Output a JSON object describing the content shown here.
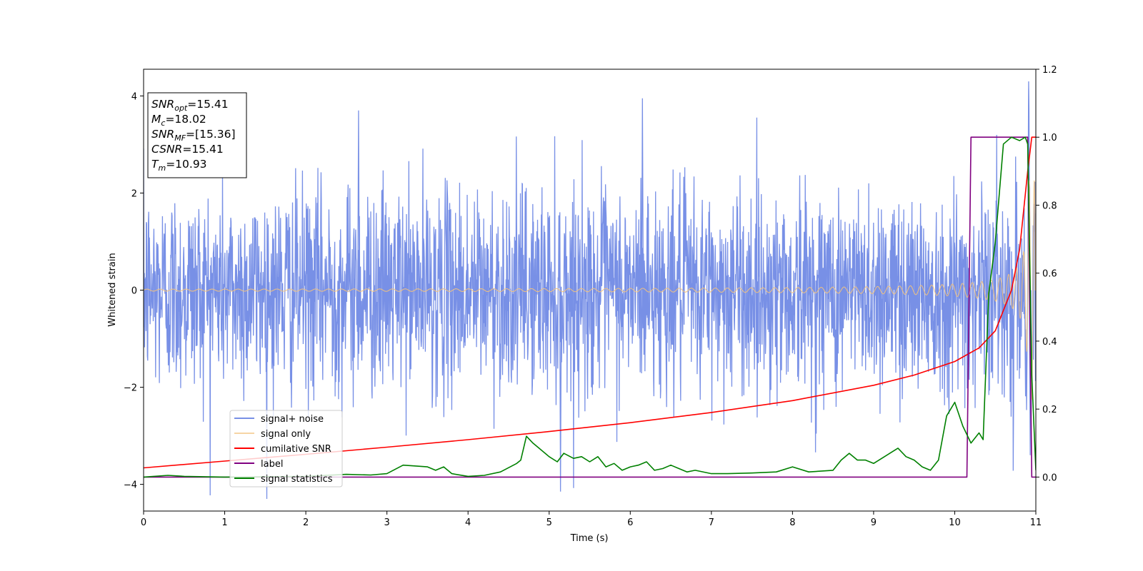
{
  "chart_data": {
    "type": "line",
    "title": "",
    "xlabel": "Time (s)",
    "ylabel": "Whitened strain",
    "xlim": [
      0,
      11
    ],
    "ylim": [
      -4.55,
      4.55
    ],
    "y2lim": [
      -0.1,
      1.2
    ],
    "xticks": [
      0,
      1,
      2,
      3,
      4,
      5,
      6,
      7,
      8,
      9,
      10,
      11
    ],
    "yticks": [
      -4,
      -2,
      0,
      2,
      4
    ],
    "y2ticks": [
      0.0,
      0.2,
      0.4,
      0.6,
      0.8,
      1.0,
      1.2
    ],
    "grid": false,
    "legend_position": "lower-left",
    "annotation": {
      "lines": [
        {
          "sym": "SNR",
          "sub": "opt",
          "val": "=15.41"
        },
        {
          "sym": "M",
          "sub": "c",
          "val": "=18.02"
        },
        {
          "sym": "SNR",
          "sub": "MF",
          "val": "=[15.36]"
        },
        {
          "sym": "CSNR",
          "sub": "",
          "val": "=15.41"
        },
        {
          "sym": "T",
          "sub": "m",
          "val": "=10.93"
        }
      ]
    },
    "series": [
      {
        "name": "signal+ noise",
        "color": "#7890e6",
        "axis": "left",
        "noise_sigma": 1.0,
        "approx_extremes": [
          [
            2.65,
            3.7
          ],
          [
            6.15,
            3.95
          ],
          [
            10.91,
            4.15
          ],
          [
            5.14,
            -4.15
          ],
          [
            10.93,
            -3.4
          ]
        ]
      },
      {
        "name": "signal only",
        "color": "#f2c27d",
        "axis": "left",
        "amplitude_start": 0.02,
        "amplitude_end": 3.2,
        "merger_time": 10.93
      },
      {
        "name": "cumilative SNR",
        "color": "#ff0000",
        "axis": "right",
        "x": [
          0,
          1,
          2,
          3,
          4,
          5,
          6,
          7,
          8,
          9,
          9.5,
          10,
          10.3,
          10.5,
          10.7,
          10.8,
          10.9,
          10.95,
          11
        ],
        "y": [
          0.027,
          0.047,
          0.067,
          0.088,
          0.11,
          0.134,
          0.16,
          0.19,
          0.225,
          0.27,
          0.3,
          0.34,
          0.38,
          0.43,
          0.55,
          0.67,
          0.9,
          1.0,
          1.0
        ]
      },
      {
        "name": "label",
        "color": "#800080",
        "axis": "right",
        "x": [
          0,
          10.15,
          10.2,
          10.9,
          10.95,
          11
        ],
        "y": [
          0.0,
          0.0,
          1.0,
          1.0,
          0.0,
          0.0
        ]
      },
      {
        "name": "signal statistics",
        "color": "#008000",
        "axis": "right",
        "x": [
          0,
          0.3,
          0.5,
          1,
          2,
          2.5,
          2.8,
          3,
          3.2,
          3.5,
          3.6,
          3.7,
          3.8,
          4,
          4.2,
          4.4,
          4.6,
          4.65,
          4.72,
          4.8,
          4.85,
          5.0,
          5.1,
          5.18,
          5.3,
          5.4,
          5.5,
          5.6,
          5.7,
          5.8,
          5.9,
          6.0,
          6.1,
          6.2,
          6.3,
          6.4,
          6.5,
          6.6,
          6.7,
          6.8,
          7,
          7.2,
          7.5,
          7.8,
          8.0,
          8.2,
          8.5,
          8.6,
          8.7,
          8.8,
          8.9,
          9.0,
          9.1,
          9.2,
          9.3,
          9.4,
          9.5,
          9.6,
          9.7,
          9.8,
          9.9,
          10.0,
          10.1,
          10.2,
          10.3,
          10.35,
          10.42,
          10.5,
          10.6,
          10.7,
          10.8,
          10.87,
          10.9,
          10.95,
          11
        ],
        "y": [
          0.0,
          0.005,
          0.002,
          0.0,
          0.002,
          0.008,
          0.006,
          0.01,
          0.035,
          0.03,
          0.02,
          0.03,
          0.01,
          0.002,
          0.005,
          0.015,
          0.04,
          0.05,
          0.12,
          0.1,
          0.09,
          0.06,
          0.045,
          0.07,
          0.055,
          0.06,
          0.045,
          0.06,
          0.03,
          0.04,
          0.02,
          0.03,
          0.035,
          0.045,
          0.02,
          0.025,
          0.035,
          0.025,
          0.015,
          0.02,
          0.01,
          0.01,
          0.012,
          0.015,
          0.03,
          0.015,
          0.02,
          0.05,
          0.07,
          0.05,
          0.05,
          0.04,
          0.055,
          0.07,
          0.085,
          0.06,
          0.05,
          0.03,
          0.02,
          0.05,
          0.18,
          0.22,
          0.15,
          0.1,
          0.13,
          0.11,
          0.54,
          0.69,
          0.98,
          1.0,
          0.99,
          1.0,
          0.98,
          0.3,
          0.02
        ]
      }
    ]
  }
}
